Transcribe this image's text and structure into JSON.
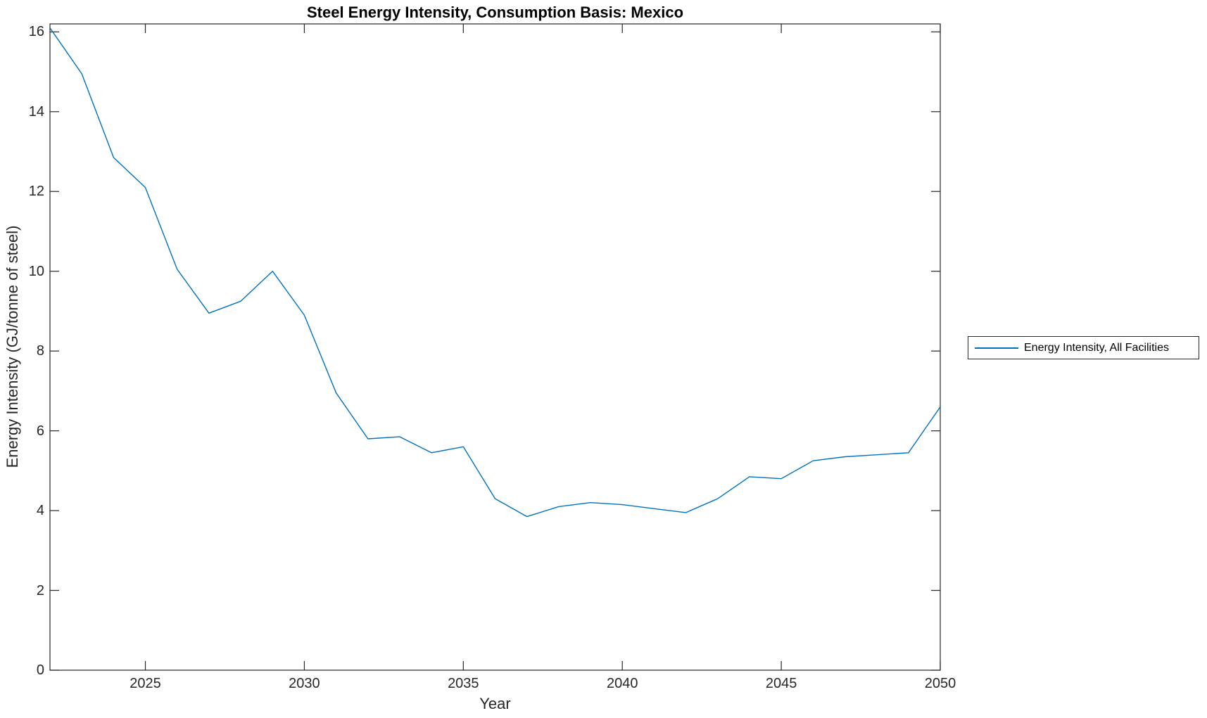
{
  "chart_data": {
    "type": "line",
    "title": "Steel Energy Intensity, Consumption Basis: Mexico",
    "xlabel": "Year",
    "ylabel": "Energy Intensity (GJ/tonne of steel)",
    "xlim": [
      2022,
      2050
    ],
    "ylim": [
      0,
      16.2
    ],
    "x_ticks": [
      2025,
      2030,
      2035,
      2040,
      2045,
      2050
    ],
    "y_ticks": [
      0,
      2,
      4,
      6,
      8,
      10,
      12,
      14,
      16
    ],
    "grid": false,
    "tick_direction": "in",
    "box": true,
    "legend": {
      "position": "right-outside",
      "entries": [
        {
          "label": "Energy Intensity, All Facilities",
          "color": "#0072BD"
        }
      ]
    },
    "series": [
      {
        "name": "Energy Intensity, All Facilities",
        "color": "#0072BD",
        "x": [
          2022,
          2023,
          2024,
          2025,
          2026,
          2027,
          2028,
          2029,
          2030,
          2031,
          2032,
          2033,
          2034,
          2035,
          2036,
          2037,
          2038,
          2039,
          2040,
          2041,
          2042,
          2043,
          2044,
          2045,
          2046,
          2047,
          2048,
          2049,
          2050
        ],
        "y": [
          16.1,
          14.95,
          12.85,
          12.1,
          10.05,
          8.95,
          9.25,
          10.0,
          8.9,
          6.95,
          5.8,
          5.85,
          5.45,
          5.6,
          4.3,
          3.85,
          4.1,
          4.2,
          4.15,
          4.05,
          3.95,
          4.3,
          4.85,
          4.8,
          5.25,
          5.35,
          5.4,
          5.45,
          6.6
        ]
      }
    ],
    "colors": {
      "axis": "#262626",
      "title": "#000000",
      "background": "#ffffff"
    }
  }
}
